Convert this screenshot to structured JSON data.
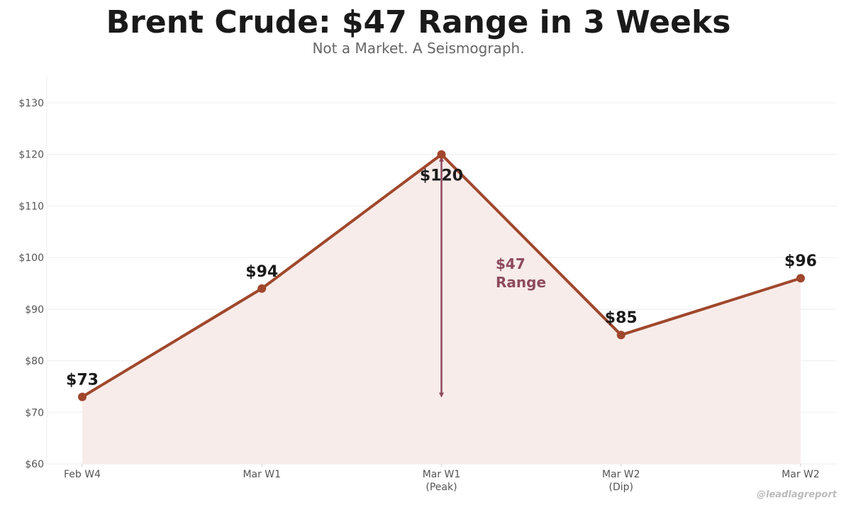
{
  "chart_data": {
    "type": "line",
    "title": "Brent Crude: $47 Range in 3 Weeks",
    "subtitle": "Not a Market. A Seismograph.",
    "categories": [
      [
        "Feb W4"
      ],
      [
        "Mar W1"
      ],
      [
        "Mar W1",
        "(Peak)"
      ],
      [
        "Mar W2",
        "(Dip)"
      ],
      [
        "Mar W2"
      ]
    ],
    "values": [
      73,
      94,
      120,
      85,
      96
    ],
    "data_labels": [
      "$73",
      "$94",
      "$120",
      "$85",
      "$96"
    ],
    "ylim": [
      60,
      135
    ],
    "yticks": [
      60,
      70,
      80,
      90,
      100,
      110,
      120,
      130
    ],
    "ytick_labels": [
      "$60",
      "$70",
      "$80",
      "$90",
      "$100",
      "$110",
      "$120",
      "$130"
    ],
    "grid": true,
    "area_fill": true,
    "annotation": {
      "lines": [
        "$47",
        "Range"
      ],
      "arrow_from": 120,
      "arrow_to": 73,
      "category_index": 2
    },
    "colors": {
      "line": "#A0472C",
      "fill": "#F7ECEA",
      "annotation": "#8E4A5E",
      "grid": "#EEEEEE"
    }
  },
  "watermark": "@leadlagreport"
}
